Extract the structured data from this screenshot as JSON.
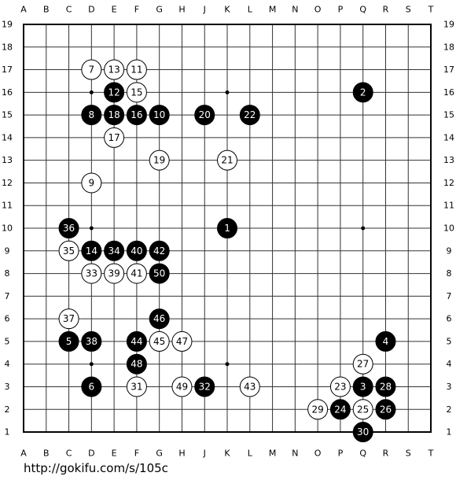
{
  "board": {
    "columns": [
      "A",
      "B",
      "C",
      "D",
      "E",
      "F",
      "G",
      "H",
      "J",
      "K",
      "L",
      "M",
      "N",
      "O",
      "P",
      "Q",
      "R",
      "S",
      "T"
    ],
    "rows": [
      19,
      18,
      17,
      16,
      15,
      14,
      13,
      12,
      11,
      10,
      9,
      8,
      7,
      6,
      5,
      4,
      3,
      2,
      1
    ],
    "stones": [
      {
        "move": 1,
        "color": "black",
        "col": "K",
        "row": 10
      },
      {
        "move": 2,
        "color": "black",
        "col": "Q",
        "row": 16
      },
      {
        "move": 3,
        "color": "black",
        "col": "Q",
        "row": 3
      },
      {
        "move": 4,
        "color": "black",
        "col": "R",
        "row": 5
      },
      {
        "move": 5,
        "color": "black",
        "col": "C",
        "row": 5
      },
      {
        "move": 6,
        "color": "black",
        "col": "D",
        "row": 3
      },
      {
        "move": 7,
        "color": "white",
        "col": "D",
        "row": 17
      },
      {
        "move": 8,
        "color": "black",
        "col": "D",
        "row": 15
      },
      {
        "move": 9,
        "color": "white",
        "col": "D",
        "row": 12
      },
      {
        "move": 10,
        "color": "black",
        "col": "G",
        "row": 15
      },
      {
        "move": 11,
        "color": "white",
        "col": "F",
        "row": 17
      },
      {
        "move": 12,
        "color": "black",
        "col": "E",
        "row": 16
      },
      {
        "move": 13,
        "color": "white",
        "col": "E",
        "row": 17
      },
      {
        "move": 14,
        "color": "black",
        "col": "D",
        "row": 9
      },
      {
        "move": 15,
        "color": "white",
        "col": "F",
        "row": 16
      },
      {
        "move": 16,
        "color": "black",
        "col": "F",
        "row": 15
      },
      {
        "move": 17,
        "color": "white",
        "col": "E",
        "row": 14
      },
      {
        "move": 18,
        "color": "black",
        "col": "E",
        "row": 15
      },
      {
        "move": 19,
        "color": "white",
        "col": "G",
        "row": 13
      },
      {
        "move": 20,
        "color": "black",
        "col": "J",
        "row": 15
      },
      {
        "move": 21,
        "color": "white",
        "col": "K",
        "row": 13
      },
      {
        "move": 22,
        "color": "black",
        "col": "L",
        "row": 15
      },
      {
        "move": 23,
        "color": "white",
        "col": "P",
        "row": 3
      },
      {
        "move": 24,
        "color": "black",
        "col": "P",
        "row": 2
      },
      {
        "move": 25,
        "color": "white",
        "col": "Q",
        "row": 2
      },
      {
        "move": 26,
        "color": "black",
        "col": "R",
        "row": 2
      },
      {
        "move": 27,
        "color": "white",
        "col": "Q",
        "row": 4
      },
      {
        "move": 28,
        "color": "black",
        "col": "R",
        "row": 3
      },
      {
        "move": 29,
        "color": "white",
        "col": "O",
        "row": 2
      },
      {
        "move": 30,
        "color": "black",
        "col": "Q",
        "row": 1
      },
      {
        "move": 31,
        "color": "white",
        "col": "F",
        "row": 3
      },
      {
        "move": 32,
        "color": "black",
        "col": "J",
        "row": 3
      },
      {
        "move": 33,
        "color": "white",
        "col": "D",
        "row": 8
      },
      {
        "move": 34,
        "color": "black",
        "col": "E",
        "row": 9
      },
      {
        "move": 35,
        "color": "white",
        "col": "C",
        "row": 9
      },
      {
        "move": 36,
        "color": "black",
        "col": "C",
        "row": 10
      },
      {
        "move": 37,
        "color": "white",
        "col": "C",
        "row": 6
      },
      {
        "move": 38,
        "color": "black",
        "col": "D",
        "row": 5
      },
      {
        "move": 39,
        "color": "white",
        "col": "E",
        "row": 8
      },
      {
        "move": 40,
        "color": "black",
        "col": "F",
        "row": 9
      },
      {
        "move": 41,
        "color": "white",
        "col": "F",
        "row": 8
      },
      {
        "move": 42,
        "color": "black",
        "col": "G",
        "row": 9
      },
      {
        "move": 43,
        "color": "white",
        "col": "L",
        "row": 3
      },
      {
        "move": 44,
        "color": "black",
        "col": "F",
        "row": 5
      },
      {
        "move": 45,
        "color": "white",
        "col": "G",
        "row": 5
      },
      {
        "move": 46,
        "color": "black",
        "col": "G",
        "row": 6
      },
      {
        "move": 47,
        "color": "white",
        "col": "H",
        "row": 5
      },
      {
        "move": 48,
        "color": "black",
        "col": "F",
        "row": 4
      },
      {
        "move": 49,
        "color": "white",
        "col": "H",
        "row": 3
      },
      {
        "move": 50,
        "color": "black",
        "col": "G",
        "row": 8
      }
    ]
  },
  "footer": {
    "url": "http://gokifu.com/s/105c"
  }
}
